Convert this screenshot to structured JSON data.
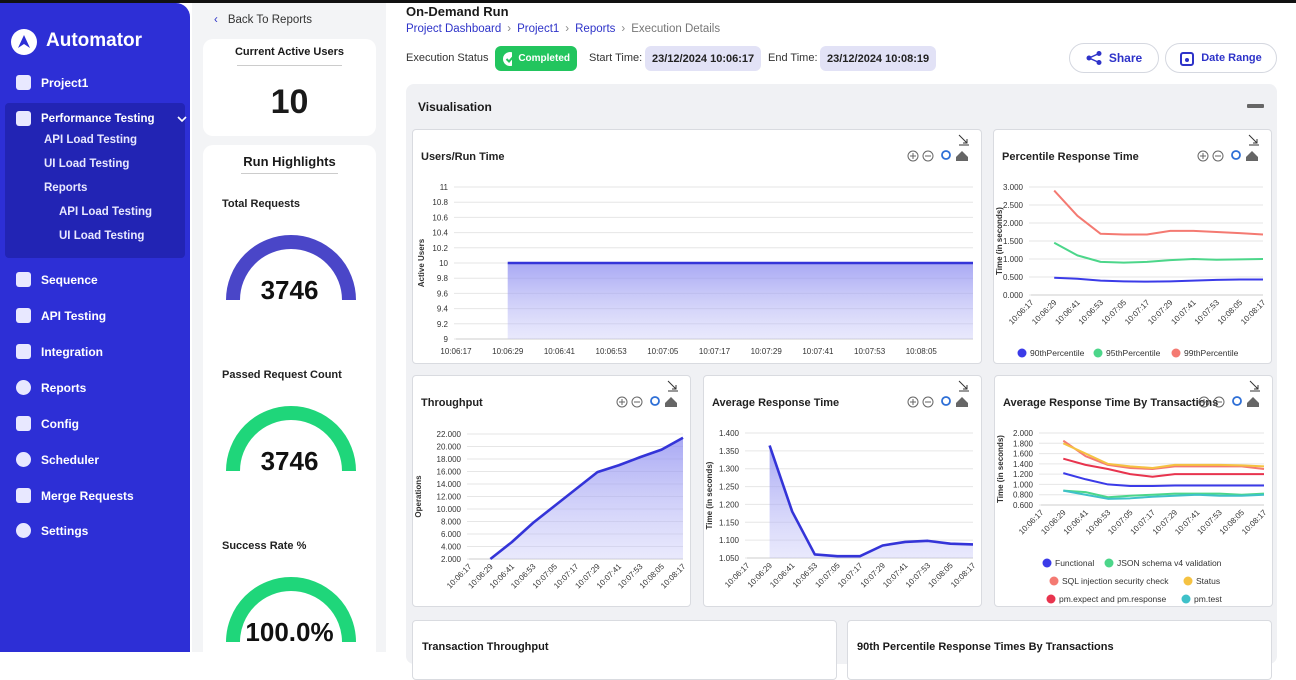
{
  "sidebar": {
    "brand": "Automator",
    "nav": [
      {
        "label": "Project1"
      },
      {
        "label": "Performance Testing",
        "children": [
          {
            "label": "API Load Testing"
          },
          {
            "label": "UI Load Testing"
          },
          {
            "label": "Reports",
            "children": [
              {
                "label": "API Load Testing"
              },
              {
                "label": "UI Load Testing"
              }
            ]
          }
        ]
      },
      {
        "label": "Sequence"
      },
      {
        "label": "API Testing"
      },
      {
        "label": "Integration"
      },
      {
        "label": "Reports"
      },
      {
        "label": "Config"
      },
      {
        "label": "Scheduler"
      },
      {
        "label": "Merge Requests"
      },
      {
        "label": "Settings"
      }
    ]
  },
  "panel": {
    "back": "Back To Reports",
    "active_users": {
      "title": "Current Active Users",
      "value": 10
    },
    "highlights": {
      "title": "Run Highlights",
      "items": [
        {
          "label": "Total Requests",
          "value": 3746
        },
        {
          "label": "Passed Request Count",
          "value": 3746
        },
        {
          "label": "Success Rate %",
          "value": "100.0%"
        }
      ]
    }
  },
  "header": {
    "title": "On-Demand Run",
    "breadcrumbs": [
      "Project Dashboard",
      "Project1",
      "Reports",
      "Execution Details"
    ],
    "status_label": "Execution Status",
    "status": "Completed",
    "start_label": "Start Time:",
    "start": "23/12/2024 10:06:17",
    "end_label": "End Time:",
    "end": "23/12/2024 10:08:19",
    "actions": [
      "Share",
      "Date Range"
    ]
  },
  "section": {
    "title": "Visualisation"
  },
  "chart_data": [
    {
      "type": "line",
      "title": "Users/Run Time",
      "y_label": "Active Users",
      "area": true,
      "grid": true,
      "categories": [
        "10:06:17",
        "10:06:29",
        "10:06:41",
        "10:06:53",
        "10:07:05",
        "10:07:17",
        "10:07:29",
        "10:07:41",
        "10:07:53",
        "10:08:05",
        null
      ],
      "ylim": [
        9,
        11
      ],
      "yticks": [
        9,
        9.2,
        9.4,
        9.6,
        9.8,
        10,
        10.2,
        10.4,
        10.6,
        10.8,
        11
      ],
      "series": [
        {
          "color": "#3434d8",
          "values": [
            null,
            10,
            10,
            10,
            10,
            10,
            10,
            10,
            10,
            10,
            10
          ]
        }
      ]
    },
    {
      "type": "line",
      "title": "Percentile Response Time",
      "y_label": "Time (in seconds)",
      "grid": true,
      "categories": [
        "10:06:17",
        "10:06:29",
        "10:06:41",
        "10:06:53",
        "10:07:05",
        "10:07:17",
        "10:07:29",
        "10:07:41",
        "10:07:53",
        "10:08:05",
        "10:08:17"
      ],
      "ylim": [
        0,
        3
      ],
      "yticks": [
        {
          "value": 0,
          "label": "0.000"
        },
        {
          "value": 0.5,
          "label": "0.500"
        },
        {
          "value": 1,
          "label": "1.000"
        },
        {
          "value": 1.5,
          "label": "1.500"
        },
        {
          "value": 2,
          "label": "2.000"
        },
        {
          "value": 2.5,
          "label": "2.500"
        },
        {
          "value": 3,
          "label": "3.000"
        }
      ],
      "series": [
        {
          "name": "90thPercentile",
          "color": "#3b3be8",
          "values": [
            null,
            0.48,
            0.45,
            0.4,
            0.38,
            0.37,
            0.38,
            0.4,
            0.42,
            0.43,
            0.43
          ]
        },
        {
          "name": "95thPercentile",
          "color": "#4cd68a",
          "values": [
            null,
            1.45,
            1.1,
            0.92,
            0.9,
            0.92,
            0.97,
            1.0,
            0.98,
            0.99,
            1.0
          ]
        },
        {
          "name": "99thPercentile",
          "color": "#f47a72",
          "values": [
            null,
            2.9,
            2.2,
            1.7,
            1.68,
            1.68,
            1.78,
            1.78,
            1.75,
            1.72,
            1.68
          ]
        }
      ]
    },
    {
      "type": "line",
      "title": "Throughput",
      "y_label": "Operations",
      "area": true,
      "grid": true,
      "categories": [
        "10:06:17",
        "10:06:29",
        "10:06:41",
        "10:06:53",
        "10:07:05",
        "10:07:17",
        "10:07:29",
        "10:07:41",
        "10:07:53",
        "10:08:05",
        "10:08:17"
      ],
      "ylim": [
        2000,
        22000
      ],
      "yticks": [
        {
          "value": 2000,
          "label": "2.000"
        },
        {
          "value": 4000,
          "label": "4.000"
        },
        {
          "value": 6000,
          "label": "6.000"
        },
        {
          "value": 8000,
          "label": "8.000"
        },
        {
          "value": 10000,
          "label": "10.000"
        },
        {
          "value": 12000,
          "label": "12.000"
        },
        {
          "value": 14000,
          "label": "14.000"
        },
        {
          "value": 16000,
          "label": "16.000"
        },
        {
          "value": 18000,
          "label": "18.000"
        },
        {
          "value": 20000,
          "label": "20.000"
        },
        {
          "value": 22000,
          "label": "22.000"
        }
      ],
      "series": [
        {
          "color": "#3434d8",
          "values": [
            null,
            2000,
            4700,
            7800,
            10500,
            13200,
            15900,
            17000,
            18300,
            19500,
            21400
          ]
        }
      ]
    },
    {
      "type": "line",
      "title": "Average Response Time",
      "y_label": "Time (in seconds)",
      "area": true,
      "grid": true,
      "categories": [
        "10:06:17",
        "10:06:29",
        "10:06:41",
        "10:06:53",
        "10:07:05",
        "10:07:17",
        "10:07:29",
        "10:07:41",
        "10:07:53",
        "10:08:05",
        "10:08:17"
      ],
      "ylim": [
        1.05,
        1.4
      ],
      "yticks": [
        {
          "value": 1.05,
          "label": "1.050"
        },
        {
          "value": 1.1,
          "label": "1.100"
        },
        {
          "value": 1.15,
          "label": "1.150"
        },
        {
          "value": 1.2,
          "label": "1.200"
        },
        {
          "value": 1.25,
          "label": "1.250"
        },
        {
          "value": 1.3,
          "label": "1.300"
        },
        {
          "value": 1.35,
          "label": "1.350"
        },
        {
          "value": 1.4,
          "label": "1.400"
        }
      ],
      "series": [
        {
          "color": "#3434d8",
          "values": [
            null,
            1.365,
            1.18,
            1.06,
            1.055,
            1.055,
            1.085,
            1.095,
            1.098,
            1.09,
            1.088
          ]
        }
      ]
    },
    {
      "type": "line",
      "title": "Average Response Time By Transactions",
      "y_label": "Time (in seconds)",
      "grid": true,
      "categories": [
        "10:06:17",
        "10:06:29",
        "10:06:41",
        "10:06:53",
        "10:07:05",
        "10:07:17",
        "10:07:29",
        "10:07:41",
        "10:07:53",
        "10:08:05",
        "10:08:17"
      ],
      "ylim": [
        0.6,
        2
      ],
      "yticks": [
        {
          "value": 0.6,
          "label": "0.600"
        },
        {
          "value": 0.8,
          "label": "0.800"
        },
        {
          "value": 1,
          "label": "1.000"
        },
        {
          "value": 1.2,
          "label": "1.200"
        },
        {
          "value": 1.4,
          "label": "1.400"
        },
        {
          "value": 1.6,
          "label": "1.600"
        },
        {
          "value": 1.8,
          "label": "1.800"
        },
        {
          "value": 2,
          "label": "2.000"
        }
      ],
      "series": [
        {
          "name": "Functional",
          "color": "#3b3be8",
          "values": [
            null,
            1.22,
            1.1,
            1.0,
            0.97,
            0.97,
            0.98,
            0.98,
            0.98,
            0.98,
            0.98
          ]
        },
        {
          "name": "JSON schema v4 validation",
          "color": "#4cd68a",
          "values": [
            null,
            0.88,
            0.85,
            0.75,
            0.78,
            0.8,
            0.82,
            0.82,
            0.82,
            0.8,
            0.82
          ]
        },
        {
          "name": "SQL injection security check",
          "color": "#f47a72",
          "values": [
            null,
            1.85,
            1.55,
            1.38,
            1.32,
            1.3,
            1.35,
            1.35,
            1.35,
            1.35,
            1.3
          ]
        },
        {
          "name": "Status",
          "color": "#f5c242",
          "values": [
            null,
            1.8,
            1.6,
            1.4,
            1.35,
            1.32,
            1.38,
            1.38,
            1.38,
            1.37,
            1.35
          ]
        },
        {
          "name": "pm.expect and pm.response",
          "color": "#e8344e",
          "values": [
            null,
            1.5,
            1.38,
            1.3,
            1.2,
            1.15,
            1.2,
            1.2,
            1.2,
            1.2,
            1.2
          ]
        },
        {
          "name": "pm.test",
          "color": "#3fc1c9",
          "values": [
            null,
            0.88,
            0.8,
            0.72,
            0.73,
            0.76,
            0.78,
            0.8,
            0.78,
            0.78,
            0.8
          ]
        }
      ]
    }
  ],
  "more_cards": [
    "Transaction Throughput",
    "90th Percentile Response Times By Transactions"
  ]
}
